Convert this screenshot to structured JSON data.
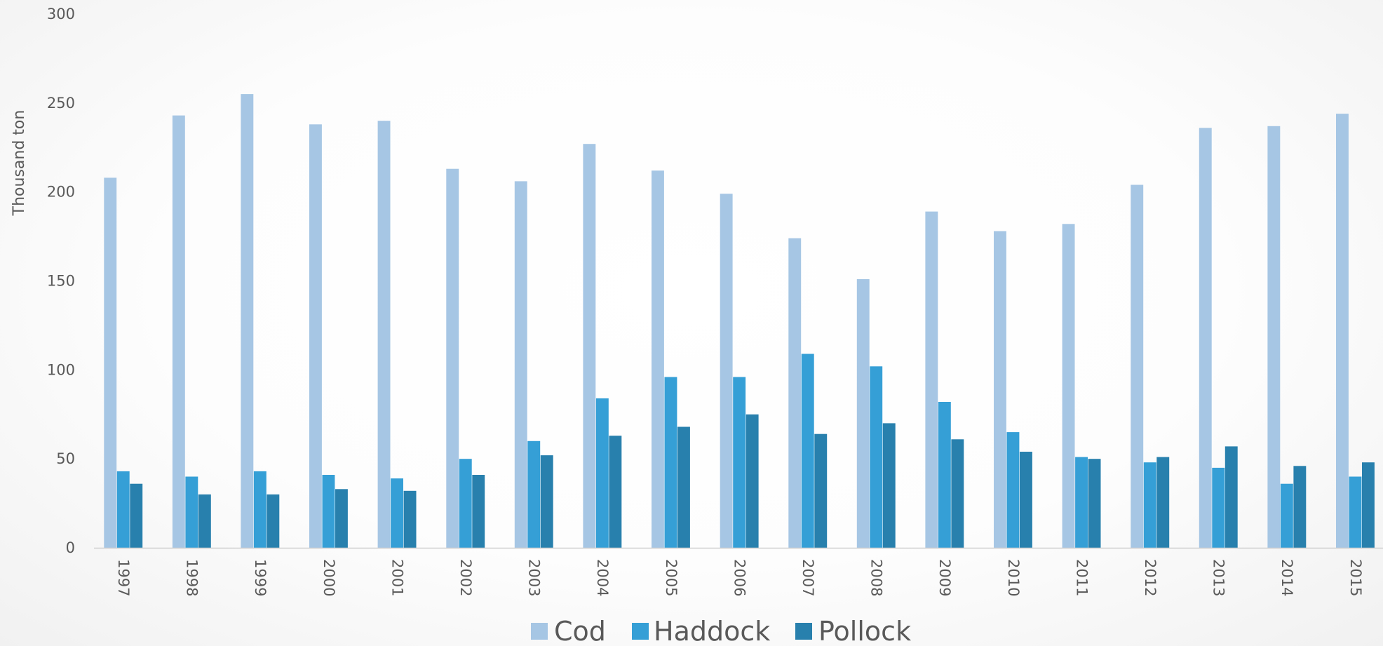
{
  "chart_data": {
    "type": "bar",
    "title": "",
    "xlabel": "",
    "ylabel": "Thousand ton",
    "ylim": [
      0,
      300
    ],
    "yticks": [
      0,
      50,
      100,
      150,
      200,
      250,
      300
    ],
    "grid": false,
    "legend_position": "bottom",
    "categories": [
      "1997",
      "1998",
      "1999",
      "2000",
      "2001",
      "2002",
      "2003",
      "2004",
      "2005",
      "2006",
      "2007",
      "2008",
      "2009",
      "2010",
      "2011",
      "2012",
      "2013",
      "2014",
      "2015"
    ],
    "series": [
      {
        "name": "Cod",
        "color": "#a6c6e4",
        "values": [
          208,
          243,
          255,
          238,
          240,
          213,
          206,
          227,
          212,
          199,
          174,
          151,
          189,
          178,
          182,
          204,
          236,
          237,
          244
        ]
      },
      {
        "name": "Haddock",
        "color": "#359fd6",
        "values": [
          43,
          40,
          43,
          41,
          39,
          50,
          60,
          84,
          96,
          96,
          109,
          102,
          82,
          65,
          51,
          48,
          45,
          36,
          40
        ]
      },
      {
        "name": "Pollock",
        "color": "#2880ad",
        "values": [
          36,
          30,
          30,
          33,
          32,
          41,
          52,
          63,
          68,
          75,
          64,
          70,
          61,
          54,
          50,
          51,
          57,
          46,
          48
        ]
      }
    ]
  }
}
